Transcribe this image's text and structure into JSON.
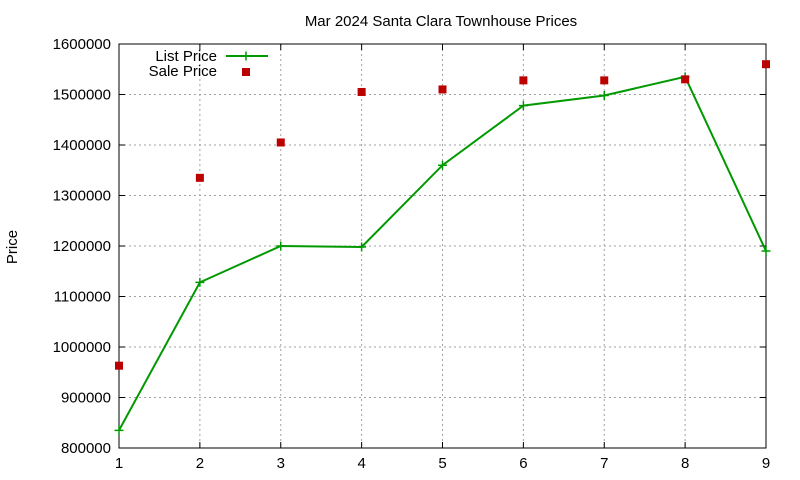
{
  "chart_data": {
    "type": "line",
    "title": "Mar 2024 Santa Clara Townhouse Prices",
    "xlabel": "",
    "ylabel": "Price",
    "x": [
      1,
      2,
      3,
      4,
      5,
      6,
      7,
      8,
      9
    ],
    "xlim": [
      1,
      9
    ],
    "ylim": [
      800000,
      1600000
    ],
    "xticks": [
      "1",
      "2",
      "3",
      "4",
      "5",
      "6",
      "7",
      "8",
      "9"
    ],
    "yticks": [
      "800000",
      "900000",
      "1000000",
      "1100000",
      "1200000",
      "1300000",
      "1400000",
      "1500000",
      "1600000"
    ],
    "grid": true,
    "legend_position": "top-left",
    "series": [
      {
        "name": "List Price",
        "style": "line-with-plus-markers",
        "color": "#009900",
        "values": [
          835000,
          1128000,
          1200000,
          1198000,
          1360000,
          1478000,
          1498000,
          1535000,
          1190000
        ]
      },
      {
        "name": "Sale Price",
        "style": "square-markers",
        "color": "#bb0000",
        "values": [
          963000,
          1335000,
          1405000,
          1505000,
          1510000,
          1528000,
          1528000,
          1530000,
          1560000
        ]
      }
    ]
  }
}
